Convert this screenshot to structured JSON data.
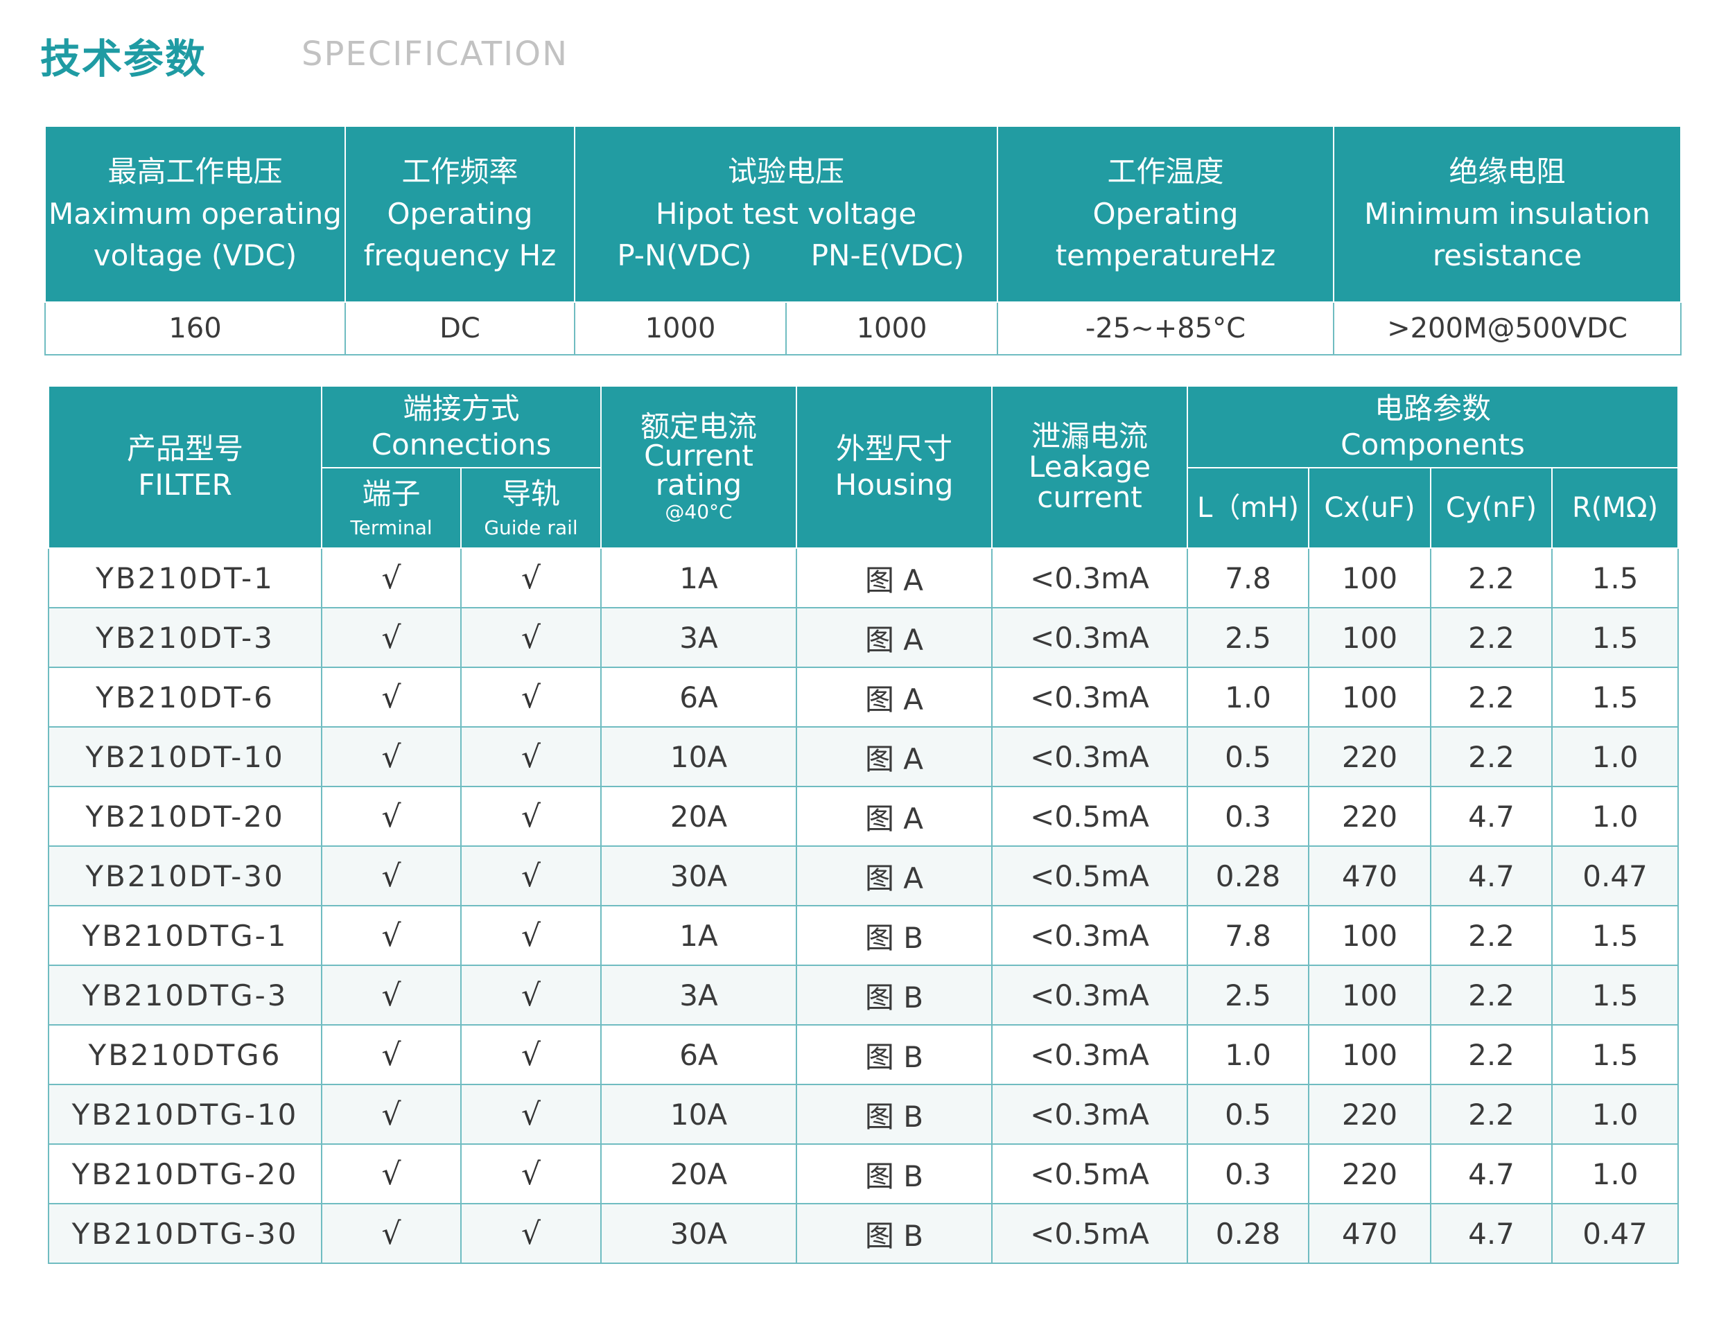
{
  "header": {
    "title_zh": "技术参数",
    "title_en": "SPECIFICATION"
  },
  "spec_table": {
    "headers": {
      "voltage": {
        "zh": "最高工作电压",
        "en1": "Maximum operating",
        "en2": "voltage (VDC)"
      },
      "frequency": {
        "zh": "工作频率",
        "en1": "Operating",
        "en2": "frequency Hz"
      },
      "hipot": {
        "zh": "试验电压",
        "en1": "Hipot test voltage",
        "pn": "P-N(VDC)",
        "pne": "PN-E(VDC)"
      },
      "temperature": {
        "zh": "工作温度",
        "en1": "Operating",
        "en2": "temperatureHz"
      },
      "insulation": {
        "zh": "绝缘电阻",
        "en1": "Minimum insulation",
        "en2": "resistance"
      }
    },
    "values": {
      "voltage": "160",
      "frequency": "DC",
      "hipot_pn": "1000",
      "hipot_pne": "1000",
      "temperature": "-25~+85°C",
      "insulation": ">200M@500VDC"
    }
  },
  "product_table": {
    "headers": {
      "model": {
        "zh": "产品型号",
        "en": "FILTER"
      },
      "connections": {
        "zh": "端接方式",
        "en": "Connections"
      },
      "terminal": {
        "zh": "端子",
        "en": "Terminal"
      },
      "guide_rail": {
        "zh": "导轨",
        "en": "Guide rail"
      },
      "current": {
        "zh": "额定电流",
        "en1": "Current",
        "en2": "rating",
        "en3": "@40°C"
      },
      "housing": {
        "zh": "外型尺寸",
        "en": "Housing"
      },
      "leakage": {
        "zh": "泄漏电流",
        "en1": "Leakage",
        "en2": "current"
      },
      "components": {
        "zh": "电路参数",
        "en": "Components"
      },
      "l": "L（mH)",
      "cx": "Cx(uF)",
      "cy": "Cy(nF)",
      "r": "R(MΩ)"
    },
    "check_mark": "√",
    "rows": [
      {
        "model": "YB210DT-1",
        "current": "1A",
        "housing": "图 A",
        "leakage": "<0.3mA",
        "l": "7.8",
        "cx": "100",
        "cy": "2.2",
        "r": "1.5"
      },
      {
        "model": "YB210DT-3",
        "current": "3A",
        "housing": "图 A",
        "leakage": "<0.3mA",
        "l": "2.5",
        "cx": "100",
        "cy": "2.2",
        "r": "1.5"
      },
      {
        "model": "YB210DT-6",
        "current": "6A",
        "housing": "图 A",
        "leakage": "<0.3mA",
        "l": "1.0",
        "cx": "100",
        "cy": "2.2",
        "r": "1.5"
      },
      {
        "model": "YB210DT-10",
        "current": "10A",
        "housing": "图 A",
        "leakage": "<0.3mA",
        "l": "0.5",
        "cx": "220",
        "cy": "2.2",
        "r": "1.0"
      },
      {
        "model": "YB210DT-20",
        "current": "20A",
        "housing": "图 A",
        "leakage": "<0.5mA",
        "l": "0.3",
        "cx": "220",
        "cy": "4.7",
        "r": "1.0"
      },
      {
        "model": "YB210DT-30",
        "current": "30A",
        "housing": "图 A",
        "leakage": "<0.5mA",
        "l": "0.28",
        "cx": "470",
        "cy": "4.7",
        "r": "0.47"
      },
      {
        "model": "YB210DTG-1",
        "current": "1A",
        "housing": "图 B",
        "leakage": "<0.3mA",
        "l": "7.8",
        "cx": "100",
        "cy": "2.2",
        "r": "1.5"
      },
      {
        "model": "YB210DTG-3",
        "current": "3A",
        "housing": "图 B",
        "leakage": "<0.3mA",
        "l": "2.5",
        "cx": "100",
        "cy": "2.2",
        "r": "1.5"
      },
      {
        "model": "YB210DTG6",
        "current": "6A",
        "housing": "图 B",
        "leakage": "<0.3mA",
        "l": "1.0",
        "cx": "100",
        "cy": "2.2",
        "r": "1.5"
      },
      {
        "model": "YB210DTG-10",
        "current": "10A",
        "housing": "图 B",
        "leakage": "<0.3mA",
        "l": "0.5",
        "cx": "220",
        "cy": "2.2",
        "r": "1.0"
      },
      {
        "model": "YB210DTG-20",
        "current": "20A",
        "housing": "图 B",
        "leakage": "<0.5mA",
        "l": "0.3",
        "cx": "220",
        "cy": "4.7",
        "r": "1.0"
      },
      {
        "model": "YB210DTG-30",
        "current": "30A",
        "housing": "图 B",
        "leakage": "<0.5mA",
        "l": "0.28",
        "cx": "470",
        "cy": "4.7",
        "r": "0.47"
      }
    ]
  }
}
